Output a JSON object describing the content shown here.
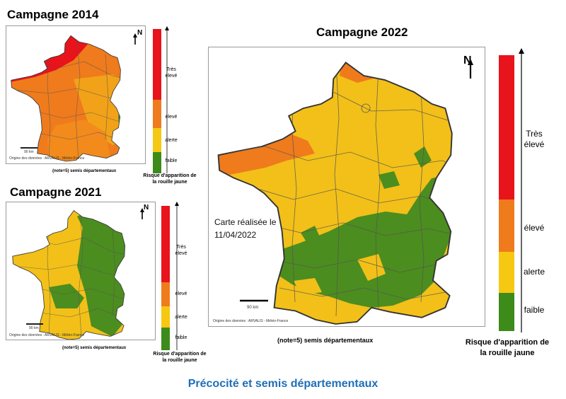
{
  "maps": {
    "m2014": {
      "title": "Campagne 2014",
      "north": "N",
      "scale_label": "90 km",
      "source": "Origine des données : ARVALIS - Météo-France",
      "note": "(note=5) semis départementaux",
      "legend_title_line1": "Risque d'apparition de",
      "legend_title_line2": "la rouille jaune"
    },
    "m2021": {
      "title": "Campagne 2021",
      "north": "N",
      "scale_label": "90 km",
      "source": "Origine des données : ARVALIS - Météo-France",
      "note": "(note=5) semis départementaux",
      "legend_title_line1": "Risque d'apparition de",
      "legend_title_line2": "la rouille jaune"
    },
    "m2022": {
      "title": "Campagne 2022",
      "north": "N",
      "scale_label": "90 km",
      "source": "Origine des données : ARVALIS - Météo-France",
      "note": "(note=5) semis départementaux",
      "date_line1": "Carte réalisée le",
      "date_line2": "11/04/2022",
      "legend_title_line1": "Risque d'apparition de",
      "legend_title_line2": "la rouille jaune"
    }
  },
  "legend": {
    "levels": [
      {
        "label_line1": "Très",
        "label_line2": "élevé",
        "color": "#e8131b"
      },
      {
        "label_line1": "élevé",
        "label_line2": "",
        "color": "#ef7b1c"
      },
      {
        "label_line1": "alerte",
        "label_line2": "",
        "color": "#f6c812"
      },
      {
        "label_line1": "faible",
        "label_line2": "",
        "color": "#3d8b19"
      }
    ]
  },
  "colors": {
    "very_high": "#e8131b",
    "high": "#ef7b1c",
    "alert": "#f2c018",
    "low": "#4c8d1f",
    "footer_text": "#1f6fb8"
  },
  "footer": "Précocité et semis départementaux"
}
